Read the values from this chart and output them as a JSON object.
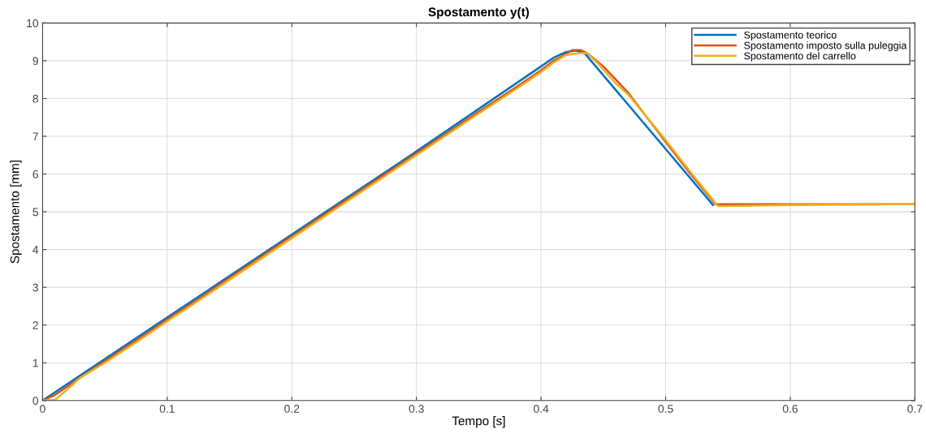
{
  "chart_data": {
    "type": "line",
    "title": "Spostamento y(t)",
    "xlabel": "Tempo [s]",
    "ylabel": "Spostamento [mm]",
    "xlim": [
      0,
      0.7
    ],
    "ylim": [
      0,
      10
    ],
    "xticks": [
      0,
      0.1,
      0.2,
      0.3,
      0.4,
      0.5,
      0.6,
      0.7
    ],
    "yticks": [
      0,
      1,
      2,
      3,
      4,
      5,
      6,
      7,
      8,
      9,
      10
    ],
    "grid": true,
    "legend": "top right",
    "marker": "none",
    "line_style": "solid",
    "series": [
      {
        "name": "Spostamento teorico",
        "color": "#0072bd",
        "x": [
          0,
          0.1,
          0.2,
          0.3,
          0.4,
          0.41,
          0.42,
          0.428,
          0.435,
          0.538
        ],
        "values": [
          0,
          2.2,
          4.4,
          6.6,
          8.85,
          9.08,
          9.23,
          9.27,
          9.2,
          5.18
        ]
      },
      {
        "name": "Spostamento imposto sulla puleggia",
        "color": "#d95319",
        "x": [
          0,
          0.01,
          0.03,
          0.05,
          0.08,
          0.1,
          0.13,
          0.15,
          0.2,
          0.25,
          0.3,
          0.35,
          0.38,
          0.4,
          0.41,
          0.42,
          0.425,
          0.432,
          0.437,
          0.45,
          0.47,
          0.5,
          0.52,
          0.54,
          0.55,
          0.6,
          0.7
        ],
        "values": [
          0,
          0.15,
          0.6,
          1.05,
          1.7,
          2.15,
          2.8,
          3.25,
          4.35,
          5.45,
          6.55,
          7.65,
          8.3,
          8.75,
          9.0,
          9.18,
          9.28,
          9.28,
          9.2,
          8.85,
          8.15,
          6.85,
          6.0,
          5.2,
          5.2,
          5.2,
          5.2
        ]
      },
      {
        "name": "Spostamento del carrello",
        "color": "#edb120",
        "x": [
          0,
          0.01,
          0.02,
          0.03,
          0.05,
          0.08,
          0.1,
          0.13,
          0.15,
          0.2,
          0.25,
          0.3,
          0.35,
          0.38,
          0.4,
          0.41,
          0.42,
          0.43,
          0.437,
          0.445,
          0.46,
          0.47,
          0.5,
          0.52,
          0.542,
          0.55,
          0.6,
          0.7
        ],
        "values": [
          0,
          0.02,
          0.3,
          0.6,
          1.0,
          1.65,
          2.1,
          2.75,
          3.2,
          4.3,
          5.4,
          6.5,
          7.6,
          8.25,
          8.7,
          8.95,
          9.15,
          9.2,
          9.2,
          8.95,
          8.4,
          8.1,
          6.9,
          6.05,
          5.15,
          5.15,
          5.18,
          5.2
        ]
      }
    ]
  }
}
